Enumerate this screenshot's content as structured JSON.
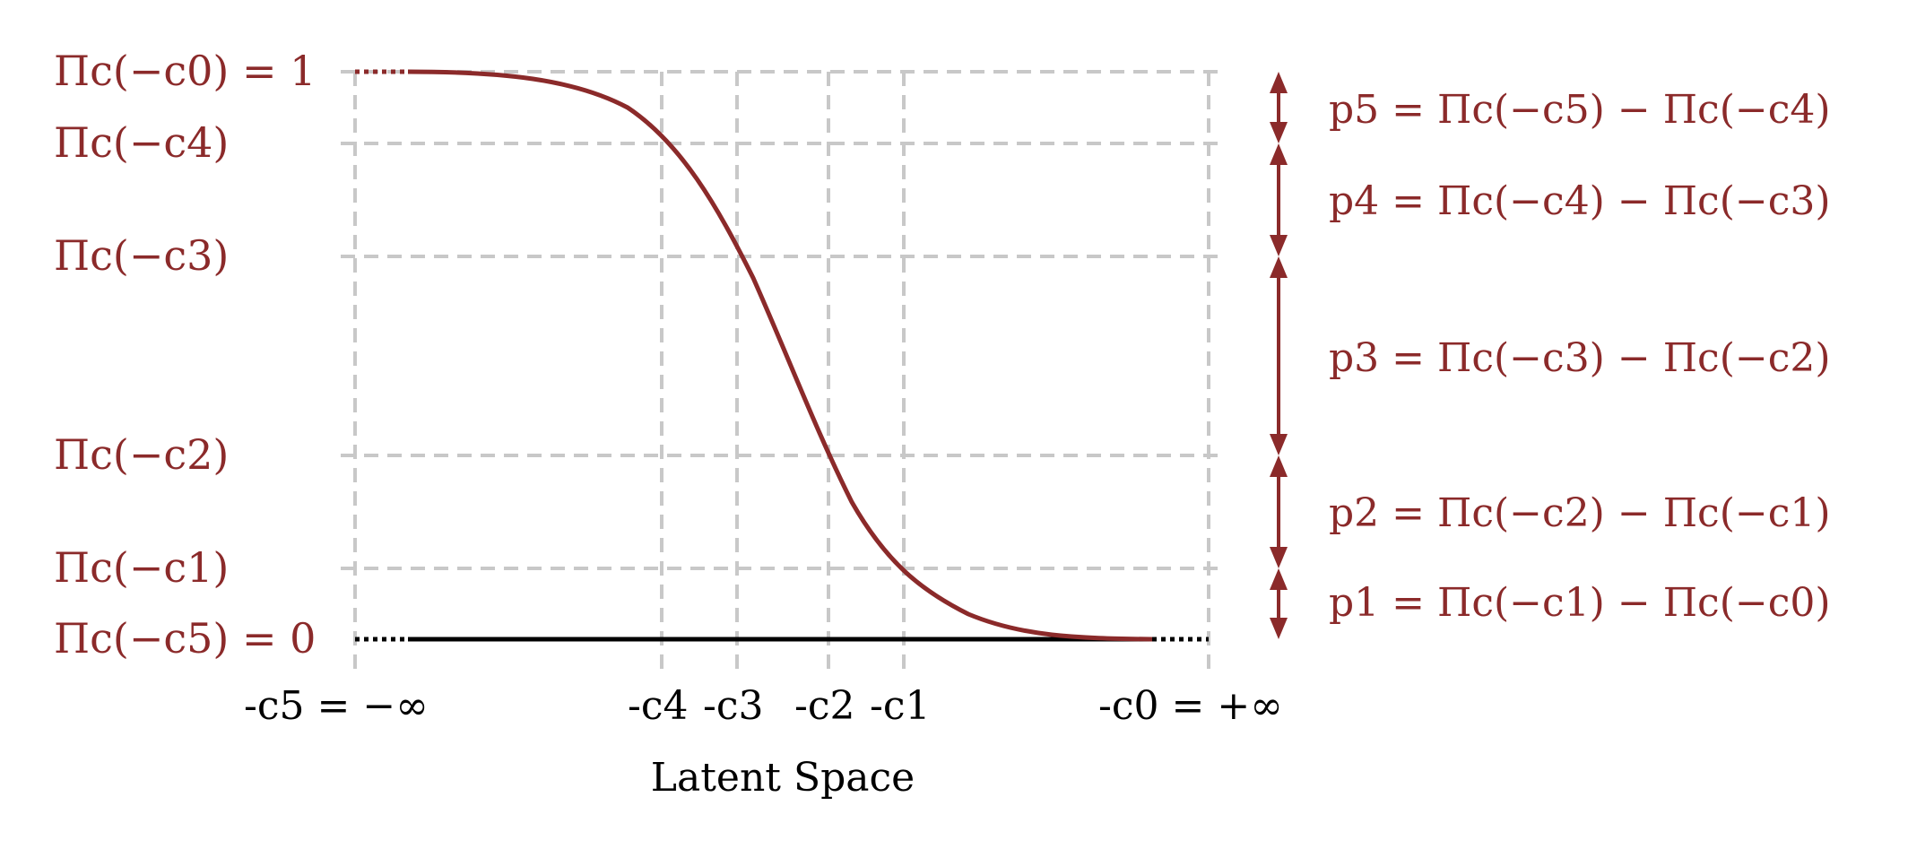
{
  "diagram": {
    "y_labels": [
      {
        "id": "c0",
        "text": "Πc(−c0) = 1"
      },
      {
        "id": "c4",
        "text": "Πc(−c4)"
      },
      {
        "id": "c3",
        "text": "Πc(−c3)"
      },
      {
        "id": "c2",
        "text": "Πc(−c2)"
      },
      {
        "id": "c1",
        "text": "Πc(−c1)"
      },
      {
        "id": "c5",
        "text": "Πc(−c5) = 0"
      }
    ],
    "x_labels": [
      {
        "id": "c5",
        "text": "-c5 = −∞"
      },
      {
        "id": "c4",
        "text": "-c4"
      },
      {
        "id": "c3",
        "text": "-c3"
      },
      {
        "id": "c2",
        "text": "-c2"
      },
      {
        "id": "c1",
        "text": "-c1"
      },
      {
        "id": "c0",
        "text": "-c0 = +∞"
      }
    ],
    "x_axis_title": "Latent Space",
    "probability_labels": [
      {
        "id": "p5",
        "text": "p5 = Πc(−c5) − Πc(−c4)"
      },
      {
        "id": "p4",
        "text": "p4 = Πc(−c4) − Πc(−c3)"
      },
      {
        "id": "p3",
        "text": "p3 = Πc(−c3) − Πc(−c2)"
      },
      {
        "id": "p2",
        "text": "p2 = Πc(−c2) − Πc(−c1)"
      },
      {
        "id": "p1",
        "text": "p1 = Πc(−c1) − Πc(−c0)"
      }
    ],
    "colors": {
      "accent": "#8b2a2a",
      "grid": "#c8c8c8",
      "baseline": "#000000"
    }
  }
}
